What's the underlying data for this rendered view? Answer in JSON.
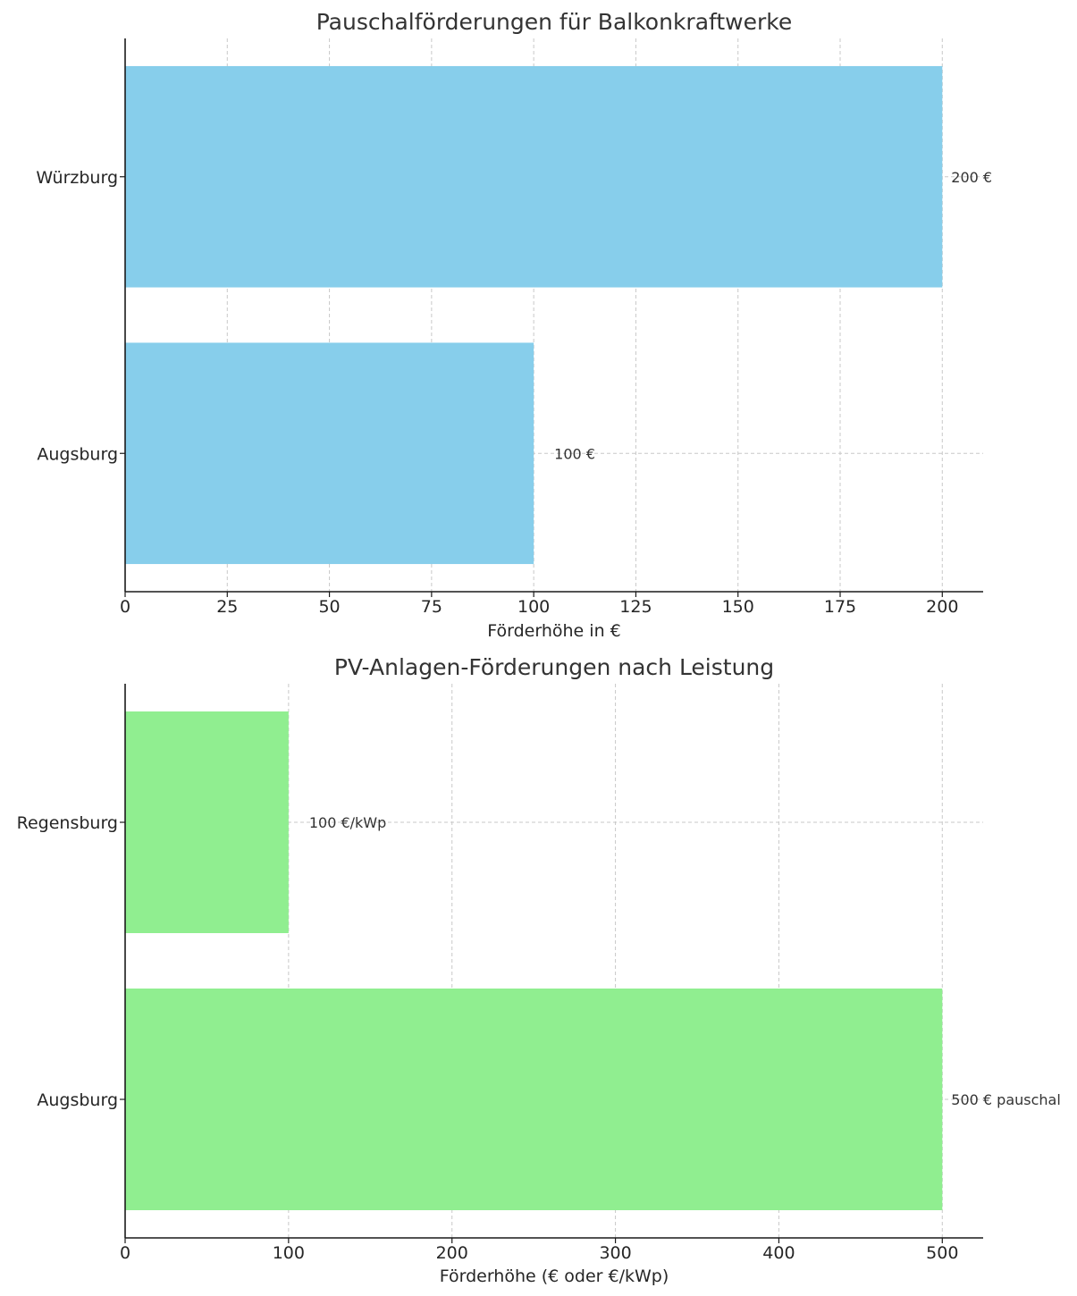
{
  "chart_data": [
    {
      "type": "bar",
      "orientation": "horizontal",
      "title": "Pauschalförderungen für Balkonkraftwerke",
      "xlabel": "Förderhöhe in €",
      "ylabel": "",
      "categories": [
        "Würzburg",
        "Augsburg"
      ],
      "values": [
        200,
        100
      ],
      "data_labels": [
        "200 €",
        "100 €"
      ],
      "xlim": [
        0,
        210
      ],
      "xticks": [
        0,
        25,
        50,
        75,
        100,
        125,
        150,
        175,
        200
      ],
      "grid": true,
      "bar_color": "#87ceeb"
    },
    {
      "type": "bar",
      "orientation": "horizontal",
      "title": "PV-Anlagen-Förderungen nach Leistung",
      "xlabel": "Förderhöhe (€ oder €/kWp)",
      "ylabel": "",
      "categories": [
        "Regensburg",
        "Augsburg"
      ],
      "values": [
        100,
        500
      ],
      "data_labels": [
        "100 €/kWp",
        "500 € pauschal"
      ],
      "xlim": [
        0,
        525
      ],
      "xticks": [
        0,
        100,
        200,
        300,
        400,
        500
      ],
      "grid": true,
      "bar_color": "#90ee90"
    }
  ]
}
